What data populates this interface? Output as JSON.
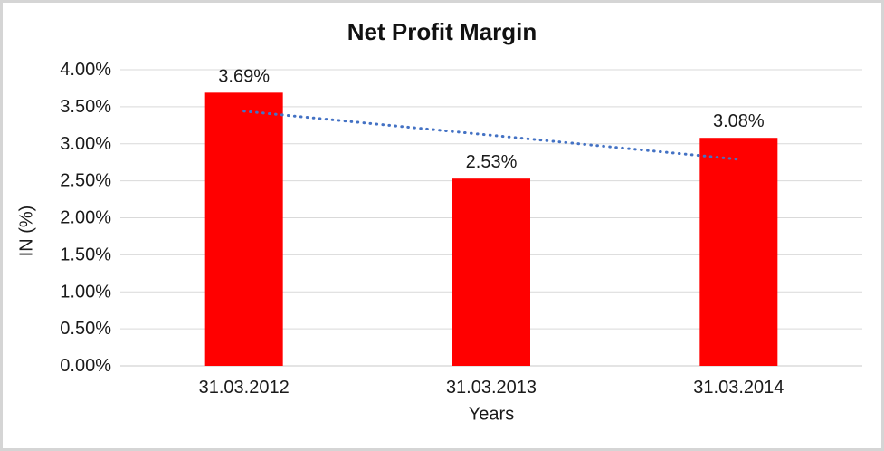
{
  "chart_data": {
    "type": "bar",
    "title": "Net Profit Margin",
    "xlabel": "Years",
    "ylabel": "IN (%)",
    "categories": [
      "31.03.2012",
      "31.03.2013",
      "31.03.2014"
    ],
    "values": [
      3.69,
      2.53,
      3.08
    ],
    "data_labels": [
      "3.69%",
      "2.53%",
      "3.08%"
    ],
    "ylim": [
      0,
      4
    ],
    "ytick_step": 0.5,
    "ytick_labels": [
      "0.00%",
      "0.50%",
      "1.00%",
      "1.50%",
      "2.00%",
      "2.50%",
      "3.00%",
      "3.50%",
      "4.00%"
    ],
    "grid": true,
    "legend": "none",
    "bar_color": "#FF0000",
    "gridline_color": "#d9d9d9",
    "axis_line_color": "#c9c9c9",
    "trendline": {
      "type": "linear",
      "style": "dotted",
      "color": "#4472C4",
      "endpoints_percent": [
        3.44,
        2.79
      ]
    }
  }
}
